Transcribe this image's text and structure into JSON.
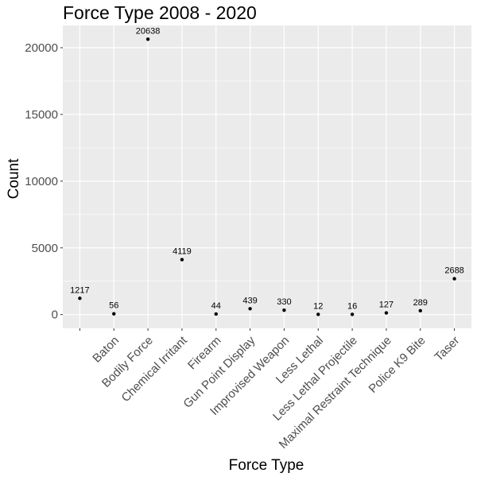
{
  "chart_data": {
    "type": "scatter",
    "title": "Force Type 2008 - 2020",
    "xlabel": "Force Type",
    "ylabel": "Count",
    "categories": [
      "",
      "Baton",
      "Bodily Force",
      "Chemical Irritant",
      "Firearm",
      "Gun Point Display",
      "Improvised Weapon",
      "Less Lethal",
      "Less Lethal Projectile",
      "Maximal Restraint Technique",
      "Police K9 Bite",
      "Taser"
    ],
    "values": [
      1217,
      56,
      20638,
      4119,
      44,
      439,
      330,
      12,
      16,
      127,
      289,
      2688
    ],
    "data_labels": [
      "1217",
      "56",
      "20638",
      "4119",
      "44",
      "439",
      "330",
      "12",
      "16",
      "127",
      "289",
      "2688"
    ],
    "yticks": [
      0,
      5000,
      10000,
      15000,
      20000
    ],
    "ytick_labels": [
      "0",
      "5000",
      "10000",
      "15000",
      "20000"
    ],
    "ylim": [
      -1032,
      21670
    ],
    "grid": true,
    "panel_color": "#ebebeb",
    "grid_color": "#ffffff",
    "point_color": "#000000"
  }
}
